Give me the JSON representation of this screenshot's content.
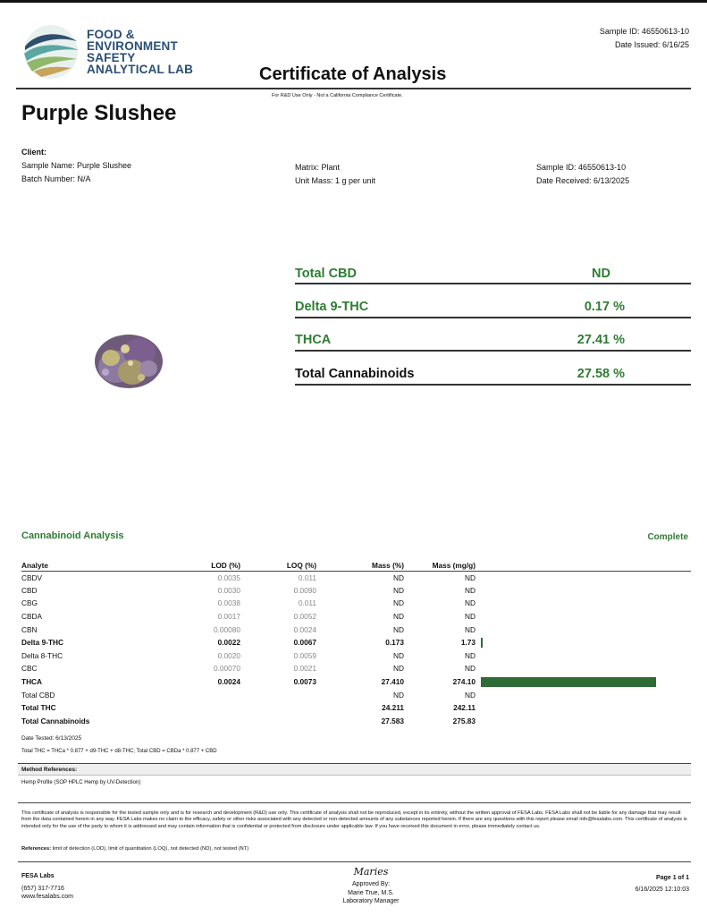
{
  "header": {
    "logo_lines": [
      "FOOD &",
      "ENVIRONMENT",
      "SAFETY",
      "ANALYTICAL LAB"
    ],
    "sample_id": "Sample ID: 46550613-10",
    "date_issued": "Date Issued: 6/16/25",
    "title": "Certificate of Analysis",
    "disclaimer": "For R&D Use Only - Not a California Compliance Certificate.",
    "product_name": "Purple Slushee"
  },
  "client": {
    "label": "Client:",
    "sample_name": "Sample Name: Purple Slushee",
    "batch_number": "Batch Number: N/A",
    "matrix": "Matrix: Plant",
    "unit_mass": "Unit Mass: 1 g per unit",
    "sample_id": "Sample ID: 46550613-10",
    "date_received": "Date Received: 6/13/2025"
  },
  "summary": [
    {
      "name": "Total CBD",
      "value": "ND"
    },
    {
      "name": "Delta 9-THC",
      "value": "0.17 %"
    },
    {
      "name": "THCA",
      "value": "27.41 %"
    },
    {
      "name": "Total Cannabinoids",
      "value": "27.58 %"
    }
  ],
  "analysis": {
    "title": "Cannabinoid Analysis",
    "status": "Complete",
    "columns": [
      "Analyte",
      "LOD (%)",
      "LOQ (%)",
      "Mass (%)",
      "Mass (mg/g)"
    ],
    "bar_max_mg_g": 300,
    "rows": [
      {
        "analyte": "CBDV",
        "lod": "0.0035",
        "loq": "0.011",
        "mass_pct": "ND",
        "mass_mg": "ND",
        "bold": false,
        "bar": 0
      },
      {
        "analyte": "CBD",
        "lod": "0.0030",
        "loq": "0.0090",
        "mass_pct": "ND",
        "mass_mg": "ND",
        "bold": false,
        "bar": 0
      },
      {
        "analyte": "CBG",
        "lod": "0.0038",
        "loq": "0.011",
        "mass_pct": "ND",
        "mass_mg": "ND",
        "bold": false,
        "bar": 0
      },
      {
        "analyte": "CBDA",
        "lod": "0.0017",
        "loq": "0.0052",
        "mass_pct": "ND",
        "mass_mg": "ND",
        "bold": false,
        "bar": 0
      },
      {
        "analyte": "CBN",
        "lod": "0.00080",
        "loq": "0.0024",
        "mass_pct": "ND",
        "mass_mg": "ND",
        "bold": false,
        "bar": 0
      },
      {
        "analyte": "Delta 9-THC",
        "lod": "0.0022",
        "loq": "0.0067",
        "mass_pct": "0.173",
        "mass_mg": "1.73",
        "bold": true,
        "bar": 1.73
      },
      {
        "analyte": "Delta 8-THC",
        "lod": "0.0020",
        "loq": "0.0059",
        "mass_pct": "ND",
        "mass_mg": "ND",
        "bold": false,
        "bar": 0
      },
      {
        "analyte": "CBC",
        "lod": "0.00070",
        "loq": "0.0021",
        "mass_pct": "ND",
        "mass_mg": "ND",
        "bold": false,
        "bar": 0
      },
      {
        "analyte": "THCA",
        "lod": "0.0024",
        "loq": "0.0073",
        "mass_pct": "27.410",
        "mass_mg": "274.10",
        "bold": true,
        "bar": 274.1
      },
      {
        "analyte": "Total CBD",
        "lod": "",
        "loq": "",
        "mass_pct": "ND",
        "mass_mg": "ND",
        "bold": false,
        "bar": 0
      },
      {
        "analyte": "Total THC",
        "lod": "",
        "loq": "",
        "mass_pct": "24.211",
        "mass_mg": "242.11",
        "bold": true,
        "bar": 0
      },
      {
        "analyte": "Total Cannabinoids",
        "lod": "",
        "loq": "",
        "mass_pct": "27.583",
        "mass_mg": "275.83",
        "bold": true,
        "bar": 0
      }
    ]
  },
  "notes": {
    "date_tested": "Date Tested: 6/13/2025",
    "formula": "Total THC = THCa * 0.877 + d9-THC + d8-THC; Total CBD = CBDa * 0.877 + CBD",
    "method_label": "Method References:",
    "method": "Hemp Profile (SOP HPLC Hemp by UV-Detection)",
    "legal": "This certificate of analysis is responsible for the tested sample only and is for research and development (R&D) use only. This certificate of analysis shall not be reproduced, except in its entirety, without the written approval of FESA Labs. FESA Labs shall not be liable for any damage that may result from the data contained herein in any way. FESA Labs makes no claim to the efficacy, safety or other risks associated with any detected or non-detected amounts of any substances reported herein. If there are any questions with this report please email info@fesalabs.com. This certificate of analysis is intended only for the use of the party to whom it is addressed and may contain information that is confidential or protected from disclosure under applicable law. If you have received this document in error, please immediately contact us.",
    "references_label": "References:",
    "references": " limit of detection (LOD), limit of quantitation (LOQ), not detected (ND), not tested (NT)"
  },
  "footer": {
    "lab_name": "FESA Labs",
    "phone": "(657) 317-7716",
    "website": "www.fesalabs.com",
    "signature": "Maries",
    "approved_by": "Approved By:",
    "approver": "Marie True, M.S.",
    "approver_title": "Laboratory Manager",
    "page": "Page 1 of 1",
    "timestamp": "6/16/2025 12:10:03"
  },
  "colors": {
    "accent_green": "#2e7d32",
    "bar_green": "#2e6b35",
    "logo_blue": "#2a4e74"
  }
}
